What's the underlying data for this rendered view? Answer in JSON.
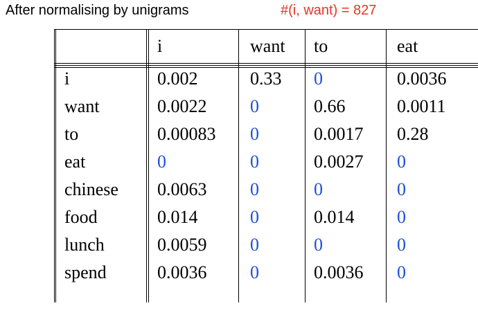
{
  "heading": "After normalising by unigrams",
  "count_note": "#(i, want) = 827",
  "colors": {
    "text": "#000000",
    "count_note": "#e8322a",
    "zero_value": "#1f4fd8"
  },
  "table": {
    "columns": [
      "i",
      "want",
      "to",
      "eat"
    ],
    "rows": [
      {
        "label": "i",
        "values": [
          "0.002",
          "0.33",
          "0",
          "0.0036"
        ]
      },
      {
        "label": "want",
        "values": [
          "0.0022",
          "0",
          "0.66",
          "0.0011"
        ]
      },
      {
        "label": "to",
        "values": [
          "0.00083",
          "0",
          "0.0017",
          "0.28"
        ]
      },
      {
        "label": "eat",
        "values": [
          "0",
          "0",
          "0.0027",
          "0"
        ]
      },
      {
        "label": "chinese",
        "values": [
          "0.0063",
          "0",
          "0",
          "0"
        ]
      },
      {
        "label": "food",
        "values": [
          "0.014",
          "0",
          "0.014",
          "0"
        ]
      },
      {
        "label": "lunch",
        "values": [
          "0.0059",
          "0",
          "0",
          "0"
        ]
      },
      {
        "label": "spend",
        "values": [
          "0.0036",
          "0",
          "0.0036",
          "0"
        ]
      }
    ]
  }
}
